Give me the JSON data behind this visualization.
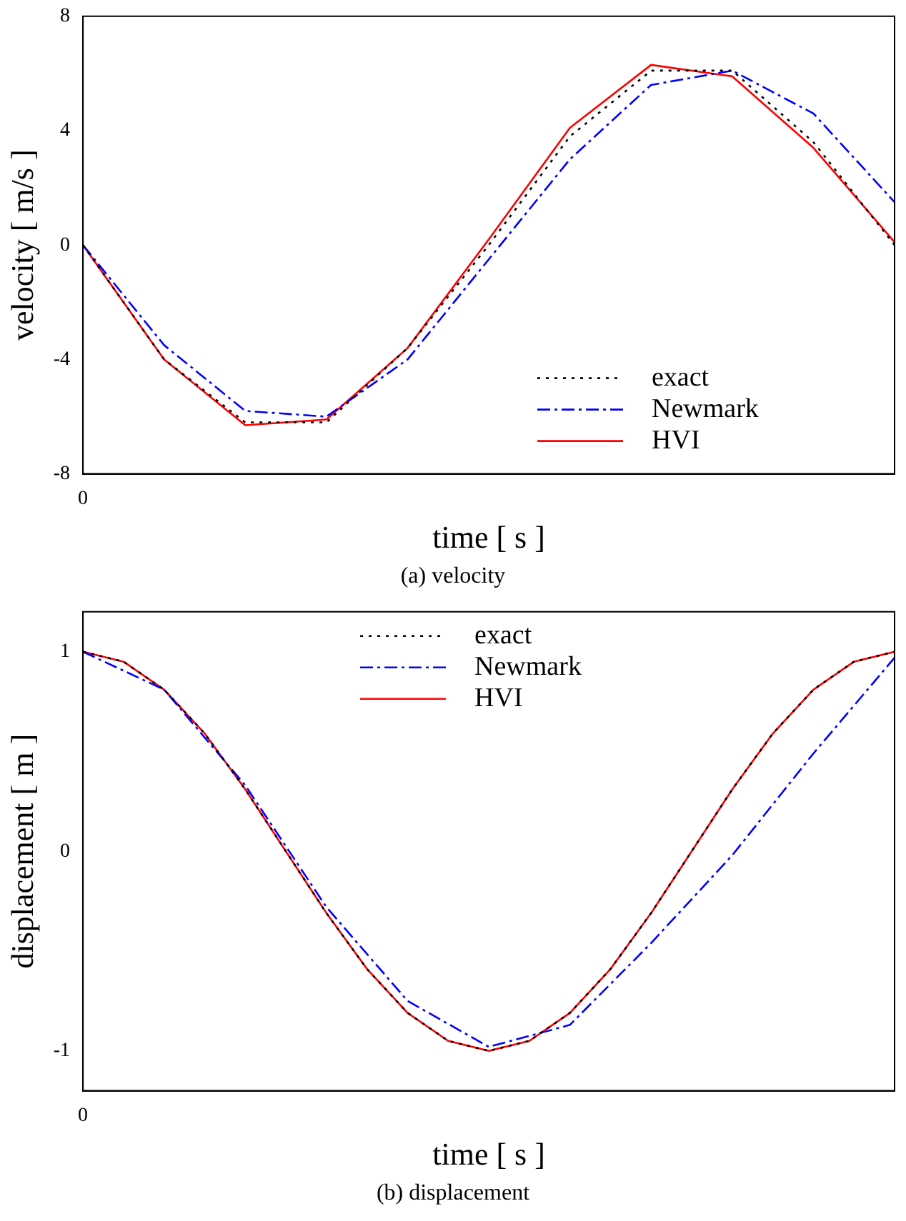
{
  "chart_data": [
    {
      "type": "line",
      "ylabel": "velocity [ m/s ]",
      "xlabel": "time [ s ]",
      "annotations": [
        "(a)  velocity"
      ],
      "categories": [
        "0",
        null,
        null,
        null,
        null,
        null,
        null,
        null,
        null,
        null,
        null
      ],
      "ylim": [
        -8,
        8
      ],
      "yticks": [
        -8,
        -4,
        0,
        4,
        8
      ],
      "grid": false,
      "legend": "bottom right",
      "marker": "none",
      "series": [
        {
          "name": "exact",
          "color": "#000000",
          "line_style": "dotted",
          "values": [
            0,
            -4.0,
            -6.2,
            -6.2,
            -3.6,
            0,
            3.8,
            6.1,
            6.1,
            3.6,
            0
          ]
        },
        {
          "name": "Newmark",
          "color": "#0000ff",
          "line_style": "dashed",
          "values": [
            0,
            -3.5,
            -5.8,
            -6.0,
            -4.0,
            -0.5,
            3.0,
            5.6,
            6.1,
            4.6,
            1.5
          ]
        },
        {
          "name": "HVI",
          "color": "#ff0000",
          "line_style": "solid",
          "values": [
            0,
            -4.0,
            -6.3,
            -6.1,
            -3.6,
            0.2,
            4.1,
            6.3,
            5.9,
            3.4,
            0.1
          ]
        }
      ]
    },
    {
      "type": "line",
      "ylabel": "displacement [ m ]",
      "xlabel": "time [ s ]",
      "annotations": [
        "(b)  displacement"
      ],
      "categories": [
        "0",
        null,
        null,
        null,
        null,
        null,
        null,
        null,
        null,
        null,
        null,
        null,
        null,
        null,
        null,
        null,
        null,
        null,
        null,
        null,
        null
      ],
      "ylim": [
        -1.2,
        1.2
      ],
      "yticks": [
        -1,
        0,
        1
      ],
      "grid": false,
      "legend": "top",
      "marker": "none",
      "series": [
        {
          "name": "exact",
          "color": "#000000",
          "line_style": "dotted",
          "values": [
            1,
            0.95,
            0.81,
            0.59,
            0.31,
            0,
            -0.31,
            -0.59,
            -0.81,
            -0.95,
            -1,
            -0.95,
            -0.81,
            -0.59,
            -0.31,
            0,
            0.31,
            0.59,
            0.81,
            0.95,
            1
          ]
        },
        {
          "name": "Newmark",
          "color": "#0000ff",
          "line_style": "dashed",
          "values": [
            1,
            null,
            0.81,
            null,
            0.33,
            null,
            -0.28,
            null,
            -0.75,
            null,
            -0.98,
            null,
            -0.87,
            null,
            -0.46,
            null,
            -0.02,
            null,
            0.49,
            null,
            0.97
          ]
        },
        {
          "name": "HVI",
          "color": "#ff0000",
          "line_style": "solid",
          "values": [
            1,
            0.95,
            0.81,
            0.59,
            0.31,
            0,
            -0.31,
            -0.59,
            -0.81,
            -0.95,
            -1,
            -0.95,
            -0.81,
            -0.59,
            -0.31,
            0,
            0.31,
            0.59,
            0.81,
            0.95,
            1
          ]
        }
      ]
    }
  ]
}
